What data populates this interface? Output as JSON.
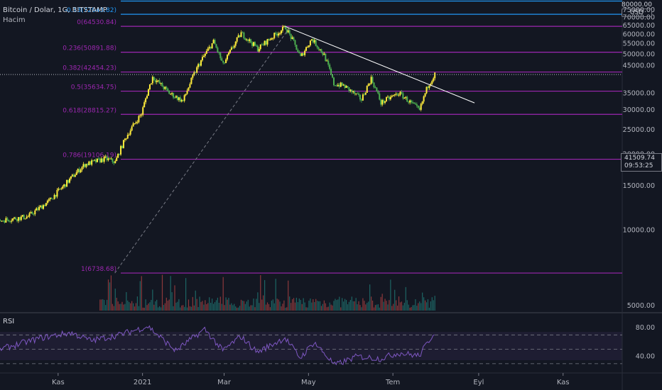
{
  "legend": {
    "symbol": "Bitcoin / Dolar, 1G, BITSTAMP",
    "volume": "Hacim"
  },
  "rsi_label": "RSI",
  "price_scale": {
    "top_label": "80000.00",
    "currency": "USD",
    "ticks": [
      "75000.00",
      "70000.00",
      "65000.00",
      "60000.00",
      "55000.00",
      "50000.00",
      "45000.00",
      "35000.00",
      "30000.00",
      "25000.00",
      "20000.00",
      "15000.00",
      "10000.00",
      "5000.00"
    ],
    "last_price": "41509.74",
    "countdown": "09:53:25"
  },
  "rsi_scale": {
    "ticks": [
      "80.00",
      "40.00"
    ]
  },
  "time_axis": [
    "Kas",
    "2021",
    "Mar",
    "May",
    "Tem",
    "Eyl",
    "Kas"
  ],
  "fib_levels": [
    {
      "label": "-0.13(72043.82)",
      "price": 72043.82,
      "color": "#2196f3"
    },
    {
      "label": "0(64530.84)",
      "price": 64530.84,
      "color": "#9c27b0"
    },
    {
      "label": "0.236(50891.88)",
      "price": 50891.88,
      "color": "#9c27b0"
    },
    {
      "label": "0.382(42454.23)",
      "price": 42454.23,
      "color": "#9c27b0"
    },
    {
      "label": "0.5(35634.75)",
      "price": 35634.75,
      "color": "#9c27b0"
    },
    {
      "label": "0.618(28815.27)",
      "price": 28815.27,
      "color": "#9c27b0"
    },
    {
      "label": "0.786(19106.19)",
      "price": 19106.19,
      "color": "#9c27b0"
    },
    {
      "label": "1(6738.68)",
      "price": 6738.68,
      "color": "#9c27b0"
    }
  ],
  "colors": {
    "up": "#ffeb3b",
    "down": "#4caf50",
    "vol_up": "#26a69a",
    "vol_down": "#ef5350",
    "rsi": "#7e57c2",
    "fib": "#9c27b0",
    "fib_ext": "#2196f3",
    "trend": "#ffffff"
  },
  "chart_data": {
    "type": "candlestick",
    "title": "Bitcoin / Dolar, 1G, BITSTAMP",
    "ylim": [
      5000,
      80000
    ],
    "price_path": [
      {
        "x": "2020-09-20",
        "y": 10900
      },
      {
        "x": "2020-10-10",
        "y": 11300
      },
      {
        "x": "2020-10-25",
        "y": 13000
      },
      {
        "x": "2020-11-05",
        "y": 15000
      },
      {
        "x": "2020-11-20",
        "y": 18200
      },
      {
        "x": "2020-12-05",
        "y": 19200
      },
      {
        "x": "2020-12-12",
        "y": 18600
      },
      {
        "x": "2020-12-20",
        "y": 23500
      },
      {
        "x": "2020-12-31",
        "y": 29000
      },
      {
        "x": "2021-01-08",
        "y": 40500
      },
      {
        "x": "2021-01-20",
        "y": 35000
      },
      {
        "x": "2021-01-30",
        "y": 32500
      },
      {
        "x": "2021-02-10",
        "y": 45000
      },
      {
        "x": "2021-02-21",
        "y": 56000
      },
      {
        "x": "2021-02-28",
        "y": 45200
      },
      {
        "x": "2021-03-13",
        "y": 60500
      },
      {
        "x": "2021-03-25",
        "y": 52500
      },
      {
        "x": "2021-04-14",
        "y": 64000
      },
      {
        "x": "2021-04-25",
        "y": 48500
      },
      {
        "x": "2021-05-03",
        "y": 57500
      },
      {
        "x": "2021-05-12",
        "y": 49500
      },
      {
        "x": "2021-05-19",
        "y": 38000
      },
      {
        "x": "2021-05-26",
        "y": 37500
      },
      {
        "x": "2021-06-08",
        "y": 33000
      },
      {
        "x": "2021-06-15",
        "y": 40000
      },
      {
        "x": "2021-06-22",
        "y": 32000
      },
      {
        "x": "2021-07-05",
        "y": 35000
      },
      {
        "x": "2021-07-20",
        "y": 29800
      },
      {
        "x": "2021-07-26",
        "y": 37500
      },
      {
        "x": "2021-07-31",
        "y": 41500
      }
    ],
    "rsi_range": [
      20,
      95
    ],
    "rsi_levels": [
      70,
      50,
      30
    ],
    "rsi_path": [
      {
        "x": "2020-09-20",
        "y": 50
      },
      {
        "x": "2020-10-20",
        "y": 66
      },
      {
        "x": "2020-11-10",
        "y": 73
      },
      {
        "x": "2020-11-25",
        "y": 62
      },
      {
        "x": "2020-12-15",
        "y": 70
      },
      {
        "x": "2021-01-05",
        "y": 82
      },
      {
        "x": "2021-01-25",
        "y": 48
      },
      {
        "x": "2021-02-15",
        "y": 78
      },
      {
        "x": "2021-02-28",
        "y": 48
      },
      {
        "x": "2021-03-13",
        "y": 68
      },
      {
        "x": "2021-03-25",
        "y": 46
      },
      {
        "x": "2021-04-14",
        "y": 66
      },
      {
        "x": "2021-04-25",
        "y": 38
      },
      {
        "x": "2021-05-05",
        "y": 60
      },
      {
        "x": "2021-05-20",
        "y": 28
      },
      {
        "x": "2021-06-05",
        "y": 40
      },
      {
        "x": "2021-06-22",
        "y": 37
      },
      {
        "x": "2021-07-05",
        "y": 45
      },
      {
        "x": "2021-07-20",
        "y": 41
      },
      {
        "x": "2021-07-31",
        "y": 74
      }
    ],
    "trendline": [
      {
        "x": "2021-04-14",
        "y": 64530
      },
      {
        "x": "2021-08-29",
        "y": 32000
      }
    ],
    "dashed_line": [
      {
        "x": "2020-12-12",
        "y": 6738
      },
      {
        "x": "2021-04-18",
        "y": 64530
      }
    ]
  }
}
